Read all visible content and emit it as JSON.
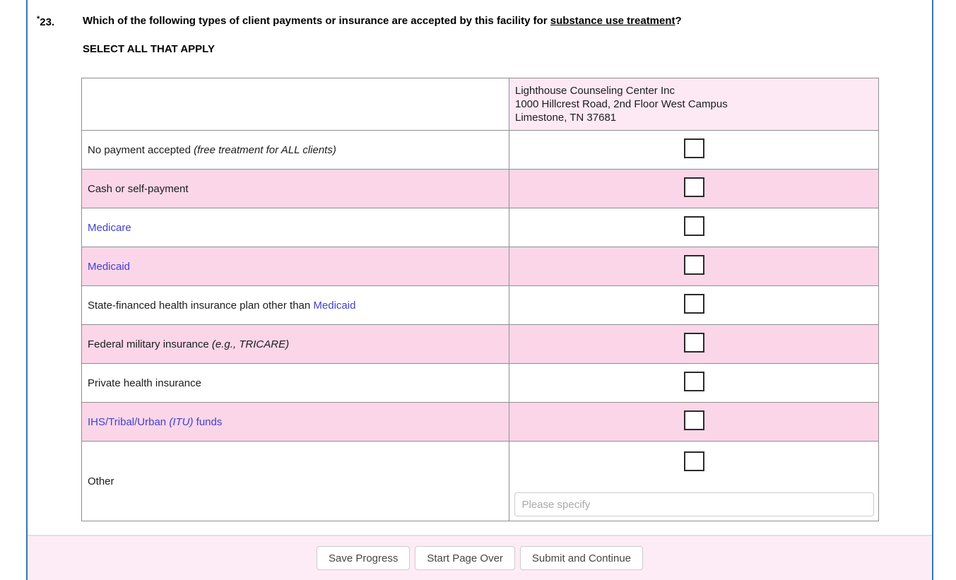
{
  "question": {
    "asterisk": "*",
    "number": "23.",
    "text_before": "Which of the following types of client payments or insurance are accepted by this facility for ",
    "underlined": "substance use treatment",
    "text_after": "?",
    "instruction": "SELECT ALL THAT APPLY"
  },
  "facility": {
    "name": "Lighthouse Counseling Center Inc",
    "address_line1": "1000 Hillcrest Road, 2nd Floor West Campus",
    "address_line2": "Limestone, TN 37681"
  },
  "table": {
    "rows": [
      {
        "text": "No payment accepted",
        "italic": "(free treatment for ALL clients)",
        "checked": false
      },
      {
        "text": "Cash or self-payment",
        "checked": false
      },
      {
        "text": "Medicare",
        "checked": false
      },
      {
        "text": "Medicaid",
        "checked": false
      },
      {
        "text": "State-financed health insurance plan other than",
        "link_text": "Medicaid",
        "checked": false
      },
      {
        "text": "Federal military insurance",
        "italic": "(e.g., TRICARE)",
        "checked": false
      },
      {
        "text": "Private health insurance",
        "checked": false
      },
      {
        "text": "IHS/Tribal/Urban",
        "italic": "(ITU)",
        "suffix": "funds",
        "checked": false
      },
      {
        "text": "Other",
        "checked": false
      }
    ],
    "other_input_value": "",
    "other_input_placeholder": "Please specify"
  },
  "footer": {
    "buttons": [
      {
        "label": "Save Progress"
      },
      {
        "label": "Start Page Over"
      },
      {
        "label": "Submit and Continue"
      }
    ]
  },
  "colors": {
    "accent_blue": "#3377ad",
    "row_pink": "#fbd6e9",
    "panel_pink": "#fde9f4",
    "footer_pink": "#fdecf5",
    "link_blue": "#4141cc",
    "table_border_gray": "#8f8f8f"
  }
}
